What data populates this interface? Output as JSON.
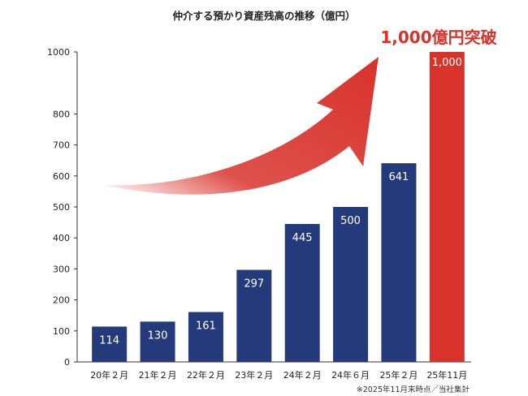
{
  "chart_data": {
    "type": "bar",
    "title": "仲介する預かり資産残高の推移（億円）",
    "callout": "1,000億円突破",
    "categories": [
      "20年２月",
      "21年２月",
      "22年２月",
      "23年２月",
      "24年２月",
      "24年６月",
      "25年２月",
      "25年11月"
    ],
    "values": [
      114,
      130,
      161,
      297,
      445,
      500,
      641,
      1000
    ],
    "value_labels": [
      "114",
      "130",
      "161",
      "297",
      "445",
      "500",
      "641",
      "1,000"
    ],
    "y_ticks": [
      0,
      100,
      200,
      300,
      400,
      500,
      600,
      700,
      800,
      1000
    ],
    "ylim": [
      0,
      1000
    ],
    "grid": false,
    "note": "※2025年11月末時点／当社集計",
    "colors": {
      "bar": "#243a7a",
      "highlight_bar": "#d8322b",
      "arrow": "#d8322b",
      "axis": "#333333"
    },
    "highlight_index": 7
  }
}
